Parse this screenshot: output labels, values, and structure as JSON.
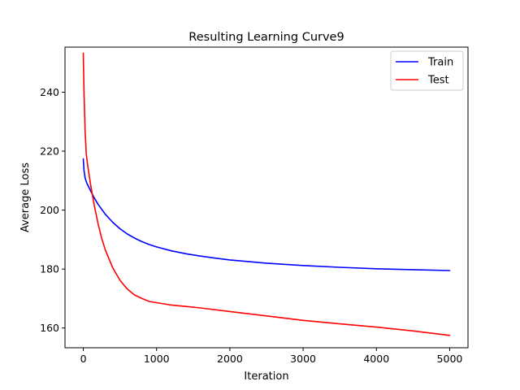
{
  "chart_data": {
    "type": "line",
    "title": "Resulting Learning Curve9",
    "xlabel": "Iteration",
    "ylabel": "Average Loss",
    "xlim": [
      -250,
      5250
    ],
    "ylim": [
      153.3,
      255.3
    ],
    "xticks": [
      0,
      1000,
      2000,
      3000,
      4000,
      5000
    ],
    "yticks": [
      160,
      180,
      200,
      220,
      240
    ],
    "grid": false,
    "legend": "top-right",
    "series": [
      {
        "name": "Train",
        "color": "#0000ff",
        "x": [
          0,
          10,
          25,
          50,
          100,
          150,
          200,
          300,
          400,
          500,
          600,
          700,
          800,
          900,
          1000,
          1200,
          1400,
          1600,
          1800,
          2000,
          2500,
          3000,
          3500,
          4000,
          4500,
          5000
        ],
        "y": [
          217.4,
          213.5,
          210.8,
          209.0,
          206.5,
          204.1,
          202.0,
          198.6,
          195.9,
          193.7,
          191.9,
          190.5,
          189.3,
          188.3,
          187.5,
          186.2,
          185.2,
          184.4,
          183.7,
          183.1,
          182.0,
          181.2,
          180.6,
          180.1,
          179.8,
          179.5
        ]
      },
      {
        "name": "Test",
        "color": "#ff0000",
        "x": [
          0,
          10,
          25,
          40,
          60,
          100,
          150,
          200,
          250,
          300,
          400,
          500,
          600,
          700,
          800,
          900,
          1000,
          1100,
          1200,
          1400,
          1600,
          2000,
          2500,
          3000,
          3500,
          4000,
          4500,
          5000
        ],
        "y": [
          253.2,
          240.0,
          226.5,
          219.0,
          215.0,
          208.5,
          201.5,
          195.5,
          190.5,
          186.5,
          180.5,
          176.2,
          173.2,
          171.2,
          170.0,
          169.0,
          168.6,
          168.2,
          167.8,
          167.3,
          166.8,
          165.6,
          164.1,
          162.6,
          161.4,
          160.3,
          159.0,
          157.5
        ]
      }
    ]
  }
}
